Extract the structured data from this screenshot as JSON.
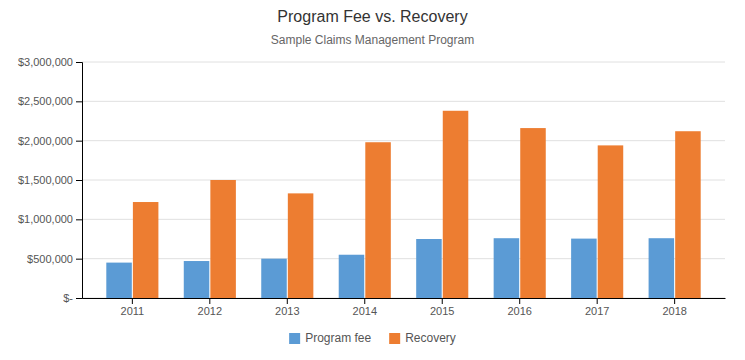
{
  "chart_data": {
    "type": "bar",
    "title": "Program Fee vs. Recovery",
    "subtitle": "Sample Claims Management Program",
    "categories": [
      "2011",
      "2012",
      "2013",
      "2014",
      "2015",
      "2016",
      "2017",
      "2018"
    ],
    "series": [
      {
        "name": "Program fee",
        "color": "#5B9BD5",
        "values": [
          450000,
          470000,
          500000,
          550000,
          750000,
          760000,
          755000,
          760000
        ]
      },
      {
        "name": "Recovery",
        "color": "#ED7D31",
        "values": [
          1220000,
          1500000,
          1330000,
          1980000,
          2380000,
          2160000,
          1940000,
          2120000
        ]
      }
    ],
    "ylim": [
      0,
      3000000
    ],
    "yticks": [
      {
        "value": 0,
        "label": "$-"
      },
      {
        "value": 500000,
        "label": "$500,000"
      },
      {
        "value": 1000000,
        "label": "$1,000,000"
      },
      {
        "value": 1500000,
        "label": "$1,500,000"
      },
      {
        "value": 2000000,
        "label": "$2,000,000"
      },
      {
        "value": 2500000,
        "label": "$2,500,000"
      },
      {
        "value": 3000000,
        "label": "$3,000,000"
      }
    ],
    "grid": true,
    "legend": "bottom"
  }
}
